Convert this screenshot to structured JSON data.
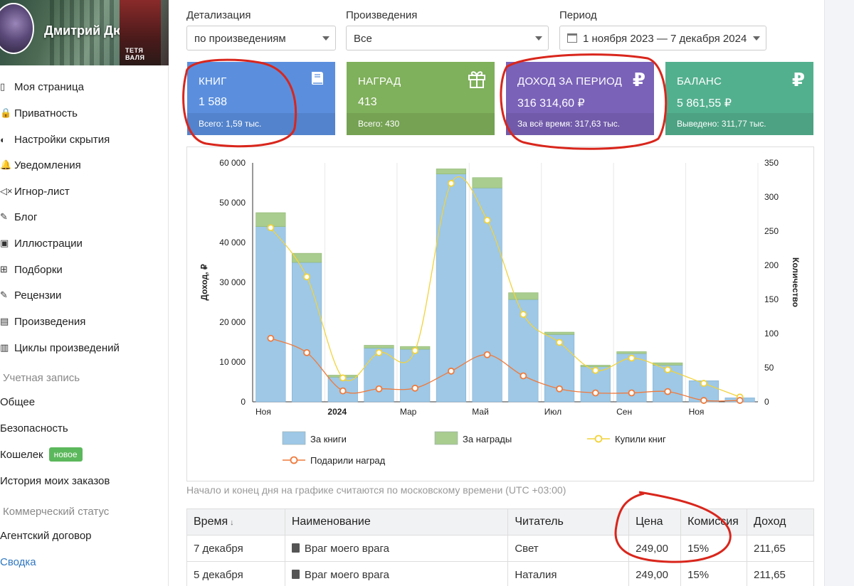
{
  "profile": {
    "name": "Дмитрий Дюпон",
    "book_cover_text": "ТЕТЯ ВАЛЯ"
  },
  "sidebar": {
    "items": [
      {
        "icon": "user-icon",
        "glyph": "▯",
        "label": "Моя страница"
      },
      {
        "icon": "lock-icon",
        "glyph": "🔒",
        "label": "Приватность"
      },
      {
        "icon": "eye-slash-icon",
        "glyph": "◐",
        "label": "Настройки скрытия"
      },
      {
        "icon": "bell-icon",
        "glyph": "🔔",
        "label": "Уведомления"
      },
      {
        "icon": "mute-icon",
        "glyph": "◁×",
        "label": "Игнор-лист"
      },
      {
        "icon": "pencil-icon",
        "glyph": "✎",
        "label": "Блог"
      },
      {
        "icon": "image-icon",
        "glyph": "▣",
        "label": "Иллюстрации"
      },
      {
        "icon": "collection-icon",
        "glyph": "⊞",
        "label": "Подборки"
      },
      {
        "icon": "comment-icon",
        "glyph": "✎",
        "label": "Рецензии"
      },
      {
        "icon": "book-icon",
        "glyph": "▤",
        "label": "Произведения"
      },
      {
        "icon": "books-icon",
        "glyph": "▥",
        "label": "Циклы произведений"
      }
    ],
    "section_account": "Учетная запись",
    "account_items": [
      "Общее",
      "Безопасность",
      "Кошелек",
      "История моих заказов"
    ],
    "wallet_badge": "новое",
    "section_commercial": "Коммерческий статус",
    "commercial_items": [
      "Агентский договор",
      "Сводка"
    ]
  },
  "filters": {
    "detail_label": "Детализация",
    "detail_value": "по произведениям",
    "works_label": "Произведения",
    "works_value": "Все",
    "period_label": "Период",
    "period_value": "1 ноября 2023 — 7 декабря 2024"
  },
  "stats": [
    {
      "title": "КНИГ",
      "value": "1 588",
      "footer": "Всего: 1,59 тыс.",
      "icon": "book-icon",
      "glyph": "📘",
      "color": "#5b8fde"
    },
    {
      "title": "НАГРАД",
      "value": "413",
      "footer": "Всего: 430",
      "icon": "gift-icon",
      "glyph": "🎁",
      "color": "#7fb05b"
    },
    {
      "title": "ДОХОД ЗА ПЕРИОД",
      "value": "316 314,60 ₽",
      "footer": "За всё время: 317,63 тыс.",
      "icon": "ruble-icon",
      "glyph": "₽",
      "color": "#7a62b8"
    },
    {
      "title": "БАЛАНС",
      "value": "5 861,55 ₽",
      "footer": "Выведено: 311,77 тыс.",
      "icon": "ruble-icon",
      "glyph": "₽",
      "color": "#53b08f"
    }
  ],
  "chart_data": {
    "type": "bar",
    "ylabel": "Доход, ₽",
    "y2label": "Количество",
    "ylim": [
      0,
      60000
    ],
    "y2lim": [
      0,
      350
    ],
    "y_ticks": [
      "0",
      "10 000",
      "20 000",
      "30 000",
      "40 000",
      "50 000",
      "60 000"
    ],
    "y2_ticks": [
      "0",
      "50",
      "100",
      "150",
      "200",
      "250",
      "300",
      "350"
    ],
    "x_tick_labels": [
      "Ноя",
      "2024",
      "Мар",
      "Май",
      "Июл",
      "Сен",
      "Ноя"
    ],
    "categories": [
      "2023-11",
      "2023-12",
      "2024-01",
      "2024-02",
      "2024-03",
      "2024-04",
      "2024-05",
      "2024-06",
      "2024-07",
      "2024-08",
      "2024-09",
      "2024-10",
      "2024-11",
      "2024-12"
    ],
    "series": [
      {
        "name": "За книги",
        "kind": "bar",
        "color": "#9ec8e6",
        "values": [
          44000,
          35000,
          6200,
          13500,
          13200,
          57200,
          53700,
          25700,
          16900,
          8800,
          12100,
          9200,
          5300,
          1000
        ]
      },
      {
        "name": "За награды",
        "kind": "bar",
        "color": "#a9cc8f",
        "values": [
          3500,
          2300,
          500,
          700,
          700,
          1300,
          2600,
          1700,
          600,
          400,
          500,
          600,
          0,
          0
        ]
      },
      {
        "name": "Купили книг",
        "kind": "line",
        "axis": "right",
        "color": "#f2d33c",
        "values": [
          255,
          183,
          35,
          72,
          75,
          320,
          266,
          128,
          87,
          46,
          64,
          47,
          27,
          7
        ]
      },
      {
        "name": "Подарили наград",
        "kind": "line",
        "axis": "right",
        "color": "#ef7a3c",
        "values": [
          93,
          72,
          16,
          19,
          20,
          45,
          69,
          38,
          19,
          13,
          13,
          15,
          2,
          2
        ]
      }
    ]
  },
  "chart_note": "Начало и конец дня на графике считаются по московскому времени (UTC +03:00)",
  "table": {
    "headers": [
      "Время",
      "Наименование",
      "Читатель",
      "Цена",
      "Комиссия",
      "Доход"
    ],
    "sort_glyph": "↓",
    "rows": [
      [
        "7 декабря",
        "Враг моего врага",
        "Свет",
        "249,00",
        "15%",
        "211,65"
      ],
      [
        "5 декабря",
        "Враг моего врага",
        "Наталия",
        "249,00",
        "15%",
        "211,65"
      ]
    ]
  },
  "annotation_color": "#d9261c"
}
